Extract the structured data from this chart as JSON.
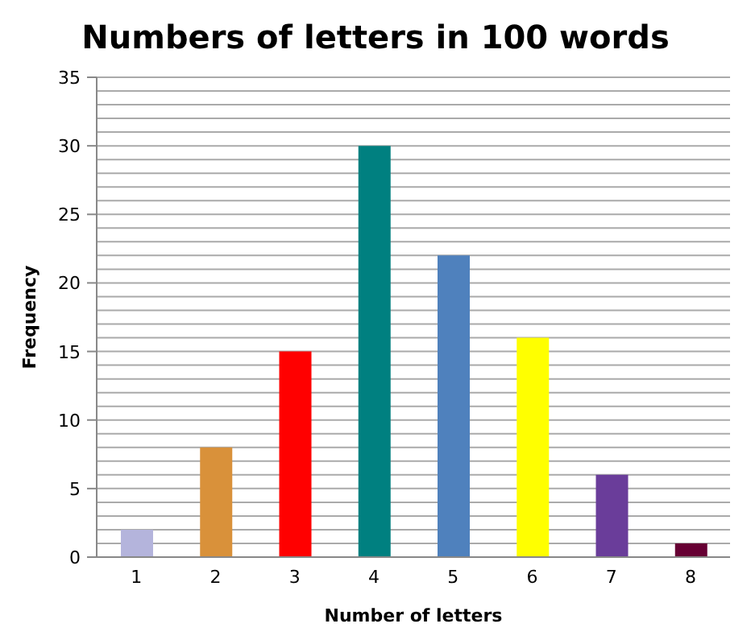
{
  "chart_data": {
    "type": "bar",
    "title": "Numbers of letters in 100 words",
    "xlabel": "Number of letters",
    "ylabel": "Frequency",
    "categories": [
      "1",
      "2",
      "3",
      "4",
      "5",
      "6",
      "7",
      "8"
    ],
    "values": [
      2,
      8,
      15,
      30,
      22,
      16,
      6,
      1
    ],
    "colors": [
      "#b4b4dc",
      "#d9913a",
      "#ff0000",
      "#008080",
      "#4f81bd",
      "#ffff00",
      "#6a3d9a",
      "#660033"
    ],
    "ylim": [
      0,
      35
    ],
    "yticks": [
      0,
      {
        "value": 1,
        "label": null
      },
      {
        "value": 2,
        "label": null
      },
      {
        "value": 3,
        "label": null
      },
      {
        "value": 4,
        "label": null
      },
      5,
      {
        "value": 6,
        "label": null
      },
      {
        "value": 7,
        "label": null
      },
      {
        "value": 8,
        "label": null
      },
      {
        "value": 9,
        "label": null
      },
      10,
      {
        "value": 11,
        "label": null
      },
      {
        "value": 12,
        "label": null
      },
      {
        "value": 13,
        "label": null
      },
      {
        "value": 14,
        "label": null
      },
      15,
      {
        "value": 16,
        "label": null
      },
      {
        "value": 17,
        "label": null
      },
      {
        "value": 18,
        "label": null
      },
      {
        "value": 19,
        "label": null
      },
      20,
      {
        "value": 21,
        "label": null
      },
      {
        "value": 22,
        "label": null
      },
      {
        "value": 23,
        "label": null
      },
      {
        "value": 24,
        "label": null
      },
      25,
      {
        "value": 26,
        "label": null
      },
      {
        "value": 27,
        "label": null
      },
      {
        "value": 28,
        "label": null
      },
      {
        "value": 29,
        "label": null
      },
      30,
      {
        "value": 31,
        "label": null
      },
      {
        "value": 32,
        "label": null
      },
      {
        "value": 33,
        "label": null
      },
      {
        "value": 34,
        "label": null
      },
      35
    ],
    "grid": "y",
    "legend": false
  }
}
